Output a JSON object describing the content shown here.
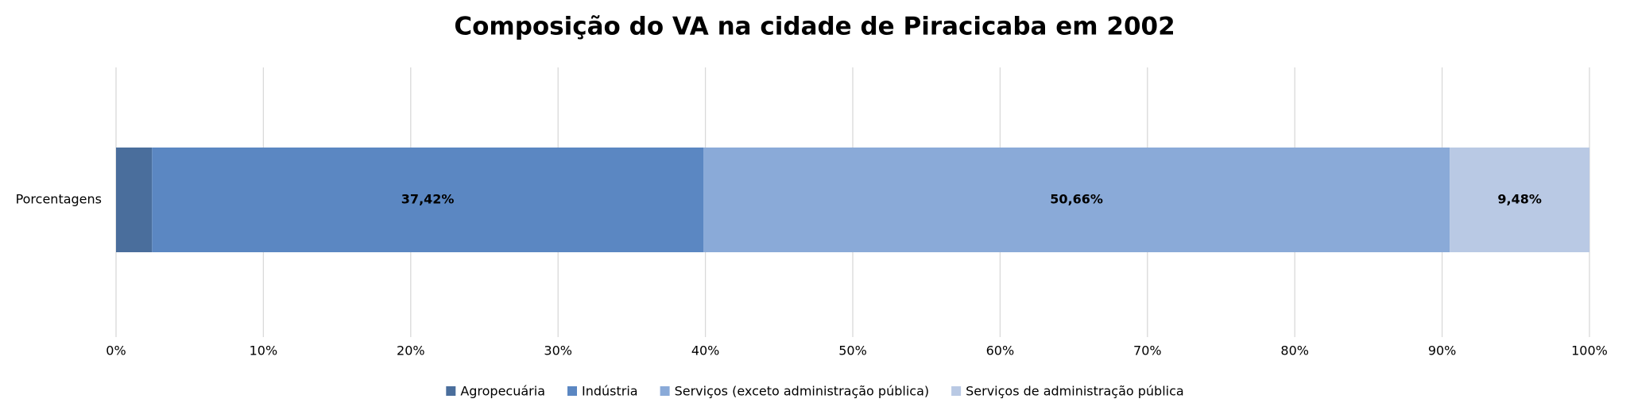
{
  "chart_data": {
    "type": "stacked-bar-horizontal",
    "title": "Composição do VA na cidade de Piracicaba em 2002",
    "categories": [
      "Porcentagens"
    ],
    "series": [
      {
        "name": "Agropecuária",
        "color": "#4a6e9c",
        "values": [
          2.44
        ]
      },
      {
        "name": "Indústria",
        "color": "#5b87c2",
        "values": [
          37.42
        ],
        "value_labels": [
          "37,42%"
        ]
      },
      {
        "name": "Serviços (exceto administração pública)",
        "color": "#8aaad8",
        "values": [
          50.66
        ],
        "value_labels": [
          "50,66%"
        ]
      },
      {
        "name": "Serviços de administração pública",
        "color": "#b9c9e4",
        "values": [
          9.48
        ],
        "value_labels": [
          "9,48%"
        ]
      }
    ],
    "xlim": [
      0,
      100
    ],
    "xticks": [
      {
        "value": 0,
        "label": "0%"
      },
      {
        "value": 10,
        "label": "10%"
      },
      {
        "value": 20,
        "label": "20%"
      },
      {
        "value": 30,
        "label": "30%"
      },
      {
        "value": 40,
        "label": "40%"
      },
      {
        "value": 50,
        "label": "50%"
      },
      {
        "value": 60,
        "label": "60%"
      },
      {
        "value": 70,
        "label": "70%"
      },
      {
        "value": 80,
        "label": "80%"
      },
      {
        "value": 90,
        "label": "90%"
      },
      {
        "value": 100,
        "label": "100%"
      }
    ],
    "grid": true
  }
}
